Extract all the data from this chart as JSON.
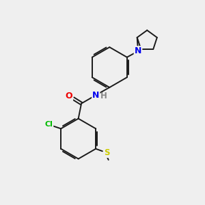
{
  "bg_color": "#efefef",
  "bond_color": "#1a1a1a",
  "atom_colors": {
    "N": "#0000ee",
    "O": "#ee0000",
    "Cl": "#00bb00",
    "S": "#cccc00",
    "H": "#888888",
    "C": "#1a1a1a"
  },
  "figsize": [
    3.0,
    3.0
  ],
  "dpi": 100
}
